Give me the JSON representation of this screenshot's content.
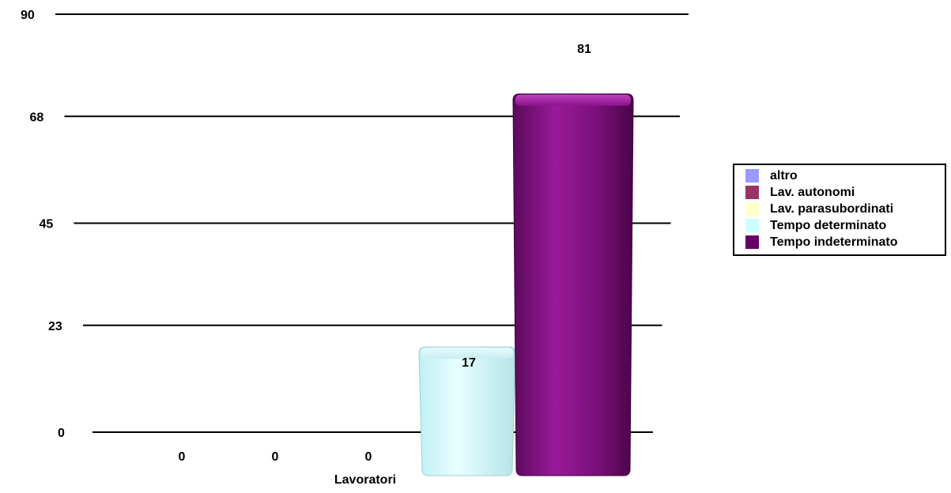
{
  "chart_data": {
    "type": "bar",
    "categories": [
      "Lavoratori"
    ],
    "xlabel": "Lavoratori",
    "ylim": [
      0,
      90
    ],
    "yticks": [
      "0",
      "23",
      "45",
      "68",
      "90"
    ],
    "grid": true,
    "legend_position": "right",
    "series": [
      {
        "name": "altro",
        "values": [
          0
        ],
        "color": "#9999ff"
      },
      {
        "name": "Lav. autonomi",
        "values": [
          0
        ],
        "color": "#993366"
      },
      {
        "name": "Lav. parasubordinati",
        "values": [
          0
        ],
        "color": "#ffffcc"
      },
      {
        "name": "Tempo determinato",
        "values": [
          17
        ],
        "color": "#ccffff"
      },
      {
        "name": "Tempo indeterminato",
        "values": [
          81
        ],
        "color": "#660066"
      }
    ],
    "data_labels": [
      "0",
      "0",
      "0",
      "17",
      "81"
    ]
  }
}
